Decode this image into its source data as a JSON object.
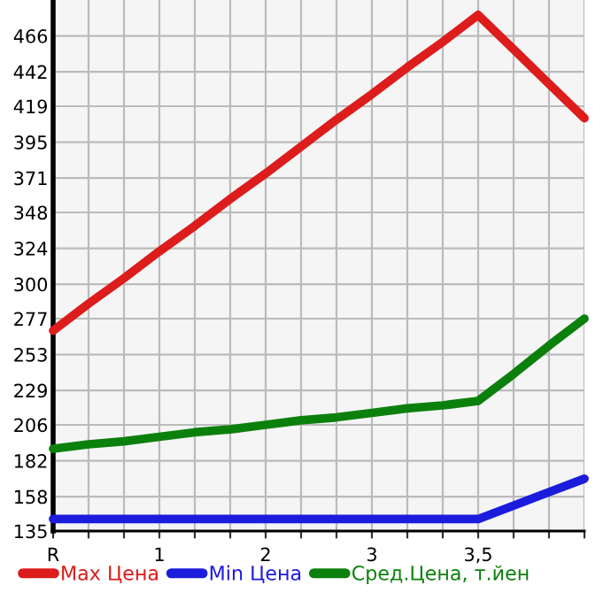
{
  "chart_data": {
    "type": "line",
    "categories": [
      "R",
      null,
      null,
      "1",
      null,
      null,
      "2",
      null,
      null,
      "3",
      null,
      null,
      "3,5",
      null,
      null,
      null
    ],
    "ylim": [
      135,
      490
    ],
    "yticks": [
      135,
      158,
      182,
      206,
      229,
      253,
      277,
      300,
      324,
      348,
      371,
      395,
      419,
      442,
      466
    ],
    "grid": true,
    "legend": "bottom",
    "marker": "none",
    "line_style": "solid",
    "series": [
      {
        "name": "Max Цена",
        "color": "#dd1c1c",
        "values": [
          269,
          287,
          304,
          322,
          339,
          357,
          374,
          392,
          410,
          427,
          445,
          462,
          480,
          457,
          434,
          411
        ]
      },
      {
        "name": "Min Цена",
        "color": "#1c1cdd",
        "values": [
          143,
          143,
          143,
          143,
          143,
          143,
          143,
          143,
          143,
          143,
          143,
          143,
          143,
          152,
          161,
          170
        ]
      },
      {
        "name": "Сред.Цена, т.йен",
        "color": "#0c800c",
        "values": [
          190,
          193,
          195,
          198,
          201,
          203,
          206,
          209,
          211,
          214,
          217,
          219,
          222,
          240,
          259,
          277
        ]
      }
    ]
  }
}
